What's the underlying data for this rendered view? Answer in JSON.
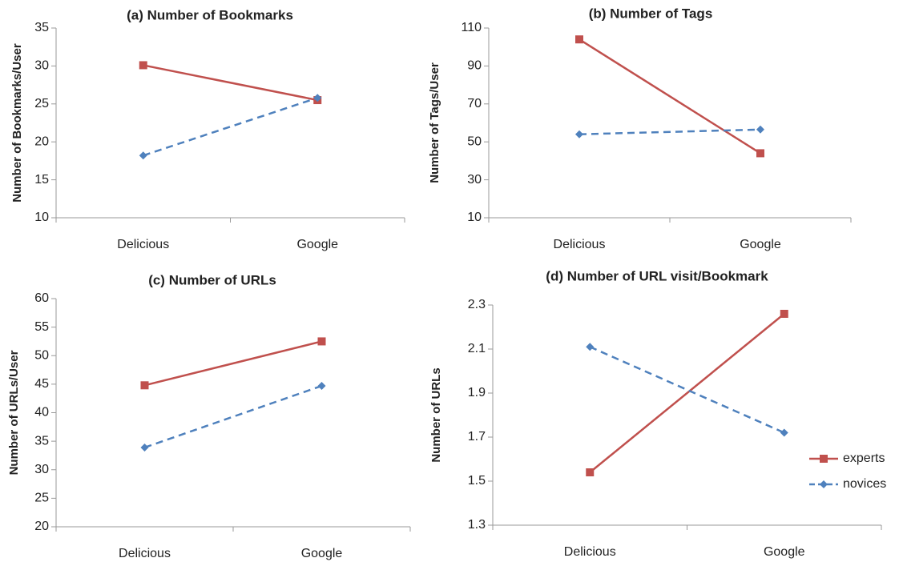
{
  "chart_data": [
    {
      "type": "line",
      "title": "(a) Number of Bookmarks",
      "ylabel": "Number of Bookmarks/User",
      "categories": [
        "Delicious",
        "Google"
      ],
      "series": [
        {
          "color": "#c0504d",
          "marker": "square",
          "dashed": false,
          "values": [
            30.1,
            25.5
          ]
        },
        {
          "color": "#4f81bd",
          "marker": "diamond",
          "dashed": true,
          "values": [
            18.2,
            25.8
          ]
        }
      ],
      "ylim": [
        10,
        35
      ],
      "yticks": [
        10,
        15,
        20,
        25,
        30,
        35
      ]
    },
    {
      "type": "line",
      "title": "(b) Number of Tags",
      "ylabel": "Number of Tags/User",
      "categories": [
        "Delicious",
        "Google"
      ],
      "series": [
        {
          "color": "#c0504d",
          "marker": "square",
          "dashed": false,
          "values": [
            104,
            44
          ]
        },
        {
          "color": "#4f81bd",
          "marker": "diamond",
          "dashed": true,
          "values": [
            54,
            56.5
          ]
        }
      ],
      "ylim": [
        10,
        110
      ],
      "yticks": [
        10,
        30,
        50,
        70,
        90,
        110
      ]
    },
    {
      "type": "line",
      "title": "(c) Number of URLs",
      "ylabel": "Number of URLs/User",
      "categories": [
        "Delicious",
        "Google"
      ],
      "series": [
        {
          "color": "#c0504d",
          "marker": "square",
          "dashed": false,
          "values": [
            44.8,
            52.5
          ]
        },
        {
          "color": "#4f81bd",
          "marker": "diamond",
          "dashed": true,
          "values": [
            33.9,
            44.7
          ]
        }
      ],
      "ylim": [
        20,
        60
      ],
      "yticks": [
        20,
        25,
        30,
        35,
        40,
        45,
        50,
        55,
        60
      ]
    },
    {
      "type": "line",
      "title": "(d) Number of URL visit/Bookmark",
      "ylabel": "Number of URLs",
      "categories": [
        "Delicious",
        "Google"
      ],
      "series": [
        {
          "name": "experts",
          "color": "#c0504d",
          "marker": "square",
          "dashed": false,
          "values": [
            1.54,
            2.26
          ]
        },
        {
          "name": "novices",
          "color": "#4f81bd",
          "marker": "diamond",
          "dashed": true,
          "values": [
            2.11,
            1.72
          ]
        }
      ],
      "ylim": [
        1.3,
        2.3
      ],
      "yticks": [
        1.3,
        1.5,
        1.7,
        1.9,
        2.1,
        2.3
      ],
      "legend": "right"
    }
  ]
}
